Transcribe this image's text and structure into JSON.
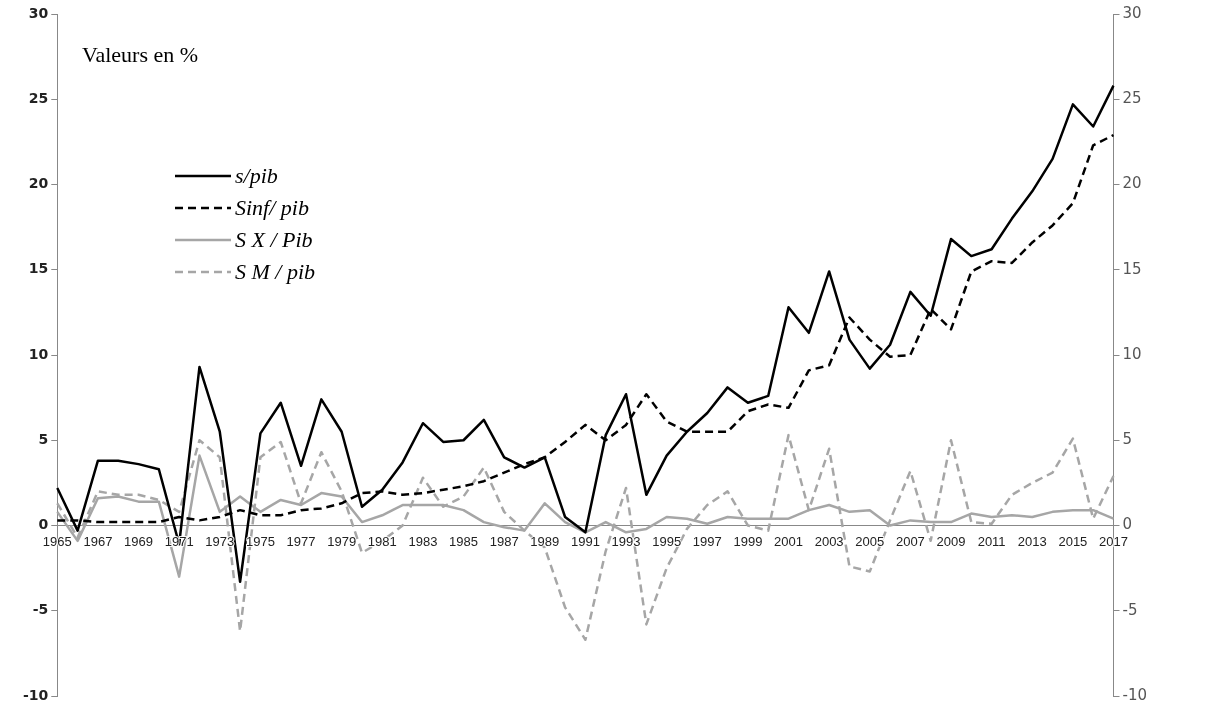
{
  "chart_data": {
    "type": "line",
    "categories": [
      "1965",
      null,
      "1967",
      null,
      "1969",
      null,
      "1971",
      null,
      "1973",
      null,
      "1975",
      null,
      "1977",
      null,
      "1979",
      null,
      "1981",
      null,
      "1983",
      null,
      "1985",
      null,
      "1987",
      null,
      "1989",
      null,
      "1991",
      null,
      "1993",
      null,
      "1995",
      null,
      "1997",
      null,
      "1999",
      null,
      "2001",
      null,
      "2003",
      null,
      "2005",
      null,
      "2007",
      null,
      "2009",
      null,
      "2011",
      null,
      "2013",
      null,
      "2015",
      null,
      "2017"
    ],
    "series": [
      {
        "name": "s/pib",
        "color": "#000000",
        "line_style": "solid",
        "values": [
          2.2,
          -0.3,
          3.8,
          3.8,
          3.6,
          3.3,
          -1.1,
          9.3,
          5.5,
          -3.3,
          5.4,
          7.2,
          3.5,
          7.4,
          5.5,
          1.1,
          2.1,
          3.7,
          6.0,
          4.9,
          5.0,
          6.2,
          4.0,
          3.4,
          4.0,
          0.5,
          -0.4,
          5.3,
          7.7,
          1.8,
          4.1,
          5.5,
          6.6,
          8.1,
          7.2,
          7.6,
          12.8,
          11.3,
          14.9,
          10.9,
          9.2,
          10.6,
          13.7,
          12.3,
          16.8,
          15.8,
          16.2,
          18.0,
          19.6,
          21.5,
          24.7,
          23.4,
          25.8
        ]
      },
      {
        "name": "Sinf/ pib",
        "color": "#000000",
        "line_style": "dashed",
        "values": [
          0.3,
          0.3,
          0.2,
          0.2,
          0.2,
          0.2,
          0.5,
          0.3,
          0.5,
          0.9,
          0.6,
          0.6,
          0.9,
          1.0,
          1.3,
          1.9,
          2.0,
          1.8,
          1.9,
          2.1,
          2.3,
          2.6,
          3.1,
          3.6,
          4.0,
          4.9,
          5.9,
          5.0,
          5.9,
          7.7,
          6.1,
          5.5,
          5.5,
          5.5,
          6.7,
          7.1,
          6.9,
          9.1,
          9.4,
          12.2,
          10.9,
          9.9,
          10.0,
          12.7,
          11.5,
          14.9,
          15.5,
          15.4,
          16.6,
          17.6,
          18.9,
          22.3,
          22.9
        ]
      },
      {
        "name": "S X / Pib",
        "color": "#a6a6a6",
        "line_style": "solid",
        "values": [
          0.8,
          -0.9,
          1.6,
          1.7,
          1.4,
          1.4,
          -3.0,
          4.1,
          0.8,
          1.7,
          0.8,
          1.5,
          1.2,
          1.9,
          1.7,
          0.2,
          0.6,
          1.2,
          1.2,
          1.2,
          0.9,
          0.2,
          -0.1,
          -0.3,
          1.3,
          0.2,
          -0.4,
          0.2,
          -0.4,
          -0.2,
          0.5,
          0.4,
          0.1,
          0.5,
          0.4,
          0.4,
          0.4,
          0.9,
          1.2,
          0.8,
          0.9,
          0.0,
          0.3,
          0.2,
          0.2,
          0.7,
          0.5,
          0.6,
          0.5,
          0.8,
          0.9,
          0.9,
          0.4
        ]
      },
      {
        "name": "S M / pib",
        "color": "#a6a6a6",
        "line_style": "dashed",
        "values": [
          1.3,
          -0.7,
          2.0,
          1.8,
          1.8,
          1.5,
          0.8,
          5.0,
          4.0,
          -6.2,
          4.0,
          4.9,
          1.3,
          4.3,
          2.0,
          -1.6,
          -0.9,
          0.0,
          2.8,
          1.1,
          1.7,
          3.4,
          0.8,
          -0.3,
          -1.3,
          -4.8,
          -6.7,
          -1.5,
          2.2,
          -5.8,
          -2.5,
          -0.2,
          1.2,
          2.0,
          0.0,
          -0.3,
          5.3,
          0.9,
          4.5,
          -2.4,
          -2.7,
          0.3,
          3.2,
          -0.9,
          5.0,
          0.2,
          0.1,
          1.8,
          2.5,
          3.1,
          5.1,
          0.4,
          2.9
        ]
      }
    ],
    "ylim": [
      -10,
      30
    ],
    "yticks": [
      -10,
      -5,
      0,
      5,
      10,
      15,
      20,
      25,
      30
    ],
    "y2lim": [
      -10,
      30
    ],
    "y2ticks": [
      -10,
      -5,
      0,
      5,
      10,
      15,
      20,
      25,
      30
    ],
    "annotations": [
      "Valeurs en %"
    ],
    "legend": "top left",
    "grid": false,
    "marker": "none"
  }
}
